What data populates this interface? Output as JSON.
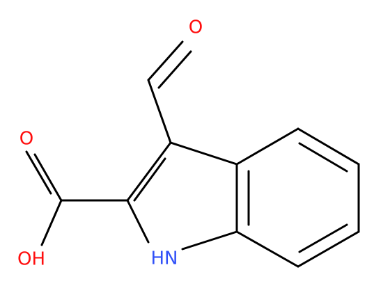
{
  "atoms": {
    "aldehyde_oxygen": "O",
    "carbonyl_oxygen": "O",
    "hydroxyl": "OH",
    "ring_nitrogen": "HN"
  }
}
